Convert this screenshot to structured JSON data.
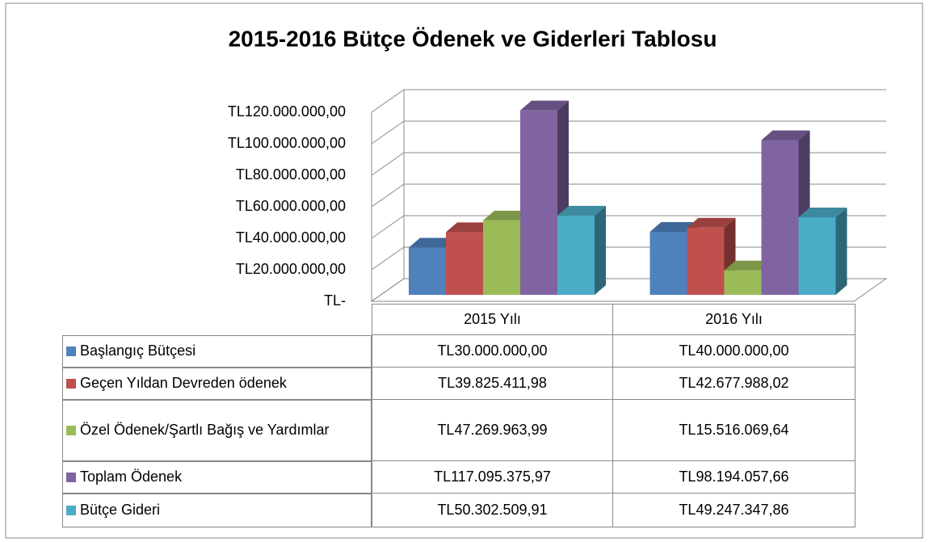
{
  "chart_data": {
    "type": "bar3d",
    "title": "2015-2016 Bütçe Ödenek ve Giderleri Tablosu",
    "categories": [
      "2015 Yılı",
      "2016 Yılı"
    ],
    "series": [
      {
        "name": "Başlangıç Bütçesi",
        "color": "#4f81bd",
        "values": [
          30000000.0,
          40000000.0
        ],
        "value_labels": [
          "TL30.000.000,00",
          "TL40.000.000,00"
        ]
      },
      {
        "name": "Geçen Yıldan Devreden ödenek",
        "color": "#c0504d",
        "values": [
          39825411.98,
          42677988.02
        ],
        "value_labels": [
          "TL39.825.411,98",
          "TL42.677.988,02"
        ]
      },
      {
        "name": "Özel Ödenek/Şartlı Bağış ve Yardımlar",
        "color": "#9bbb59",
        "values": [
          47269963.99,
          15516069.64
        ],
        "value_labels": [
          "TL47.269.963,99",
          "TL15.516.069,64"
        ]
      },
      {
        "name": "Toplam Ödenek",
        "color": "#8064a2",
        "values": [
          117095375.97,
          98194057.66
        ],
        "value_labels": [
          "TL117.095.375,97",
          "TL98.194.057,66"
        ]
      },
      {
        "name": "Bütçe Gideri",
        "color": "#4bacc6",
        "values": [
          50302509.91,
          49247347.86
        ],
        "value_labels": [
          "TL50.302.509,91",
          "TL49.247.347,86"
        ]
      }
    ],
    "ylim": [
      0,
      120000000
    ],
    "yticks": [
      {
        "value": 0,
        "label": "TL-"
      },
      {
        "value": 20000000,
        "label": "TL20.000.000,00"
      },
      {
        "value": 40000000,
        "label": "TL40.000.000,00"
      },
      {
        "value": 60000000,
        "label": "TL60.000.000,00"
      },
      {
        "value": 80000000,
        "label": "TL80.000.000,00"
      },
      {
        "value": 100000000,
        "label": "TL100.000.000,00"
      },
      {
        "value": 120000000,
        "label": "TL120.000.000,00"
      }
    ],
    "grid": true
  }
}
